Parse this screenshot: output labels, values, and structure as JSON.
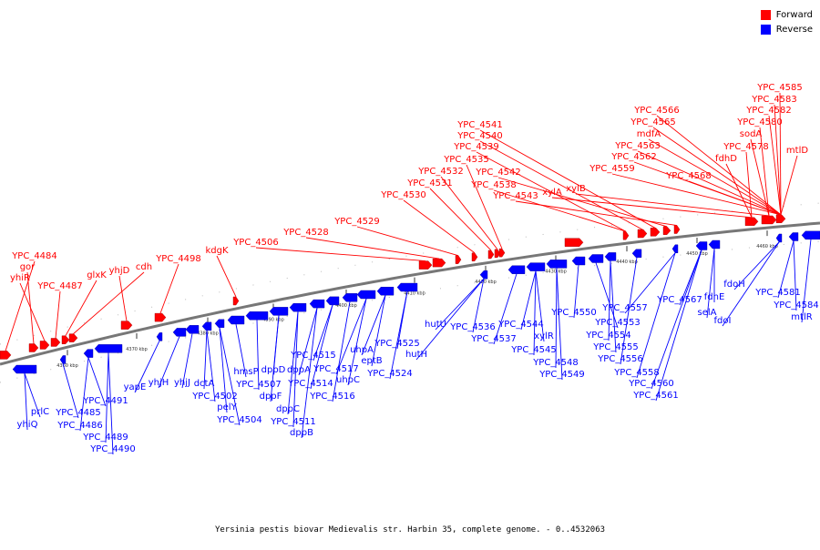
{
  "legend": {
    "forward_label": "Forward",
    "forward_color": "#ff0000",
    "reverse_label": "Reverse",
    "reverse_color": "#0000ff"
  },
  "caption": "Yersinia pestis biovar Medievalis str. Harbin 35, complete genome. - 0..4532063",
  "backbone_color": "#777777",
  "ticks": [
    "4360 kbp",
    "4370 kbp",
    "4380 kbp",
    "4390 kbp",
    "4400 kbp",
    "4410 kbp",
    "4420 kbp",
    "4430 kbp",
    "4440 kbp",
    "4450 kbp",
    "4460 kbp"
  ],
  "forward_labels": [
    "YPC_4484",
    "gor",
    "yhiR",
    "YPC_4487",
    "glxK",
    "yhjD",
    "cdh",
    "YPC_4498",
    "kdgK",
    "YPC_4506",
    "YPC_4528",
    "YPC_4529",
    "YPC_4530",
    "YPC_4531",
    "YPC_4532",
    "YPC_4535",
    "YPC_4538",
    "YPC_4539",
    "YPC_4540",
    "YPC_4541",
    "YPC_4542",
    "YPC_4543",
    "xylA",
    "xylB",
    "YPC_4559",
    "YPC_4562",
    "YPC_4563",
    "mdfA",
    "YPC_4565",
    "YPC_4566",
    "YPC_4568",
    "fdhD",
    "YPC_4578",
    "sodA",
    "YPC_4580",
    "YPC_4582",
    "YPC_4583",
    "YPC_4585",
    "mtlD"
  ],
  "reverse_labels": [
    "yhiQ",
    "prlC",
    "YPC_4485",
    "YPC_4486",
    "YPC_4489",
    "YPC_4490",
    "YPC_4491",
    "yapE",
    "yhjH",
    "yhjJ",
    "dctA",
    "YPC_4502",
    "pelY",
    "YPC_4504",
    "hmsP",
    "YPC_4507",
    "dppF",
    "dppD",
    "dppC",
    "YPC_4511",
    "dppB",
    "dppA",
    "YPC_4514",
    "YPC_4515",
    "YPC_4516",
    "YPC_4517",
    "uhpC",
    "uhpA",
    "eptB",
    "YPC_4524",
    "YPC_4525",
    "hutH",
    "hutU",
    "YPC_4536",
    "YPC_4537",
    "YPC_4544",
    "YPC_4545",
    "xylR",
    "YPC_4548",
    "YPC_4549",
    "YPC_4550",
    "YPC_4553",
    "YPC_4554",
    "YPC_4555",
    "YPC_4556",
    "YPC_4557",
    "YPC_4558",
    "YPC_4560",
    "YPC_4561",
    "YPC_4567",
    "selA",
    "fdhE",
    "fdoI",
    "fdoH",
    "YPC_4581",
    "YPC_4584",
    "mtlR"
  ]
}
